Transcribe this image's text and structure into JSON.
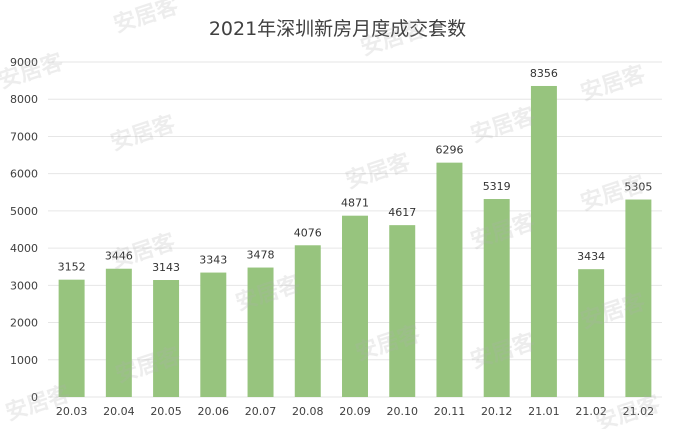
{
  "colors": {
    "bar": "#97c47e",
    "grid": "#e6e6e6",
    "text": "#404040"
  },
  "watermark": "安居客",
  "chart_data": {
    "type": "bar",
    "title": "2021年深圳新房月度成交套数",
    "xlabel": "",
    "ylabel": "",
    "ylim": [
      0,
      9000
    ],
    "yticks": [
      0,
      1000,
      2000,
      3000,
      4000,
      5000,
      6000,
      7000,
      8000,
      9000
    ],
    "grid": true,
    "legend": "none",
    "categories": [
      "20.03",
      "20.04",
      "20.05",
      "20.06",
      "20.07",
      "20.08",
      "20.09",
      "20.10",
      "20.11",
      "20.12",
      "21.01",
      "21.02",
      "21.02"
    ],
    "values": [
      3152,
      3446,
      3143,
      3343,
      3478,
      4076,
      4871,
      4617,
      6296,
      5319,
      8356,
      3434,
      5305
    ]
  }
}
